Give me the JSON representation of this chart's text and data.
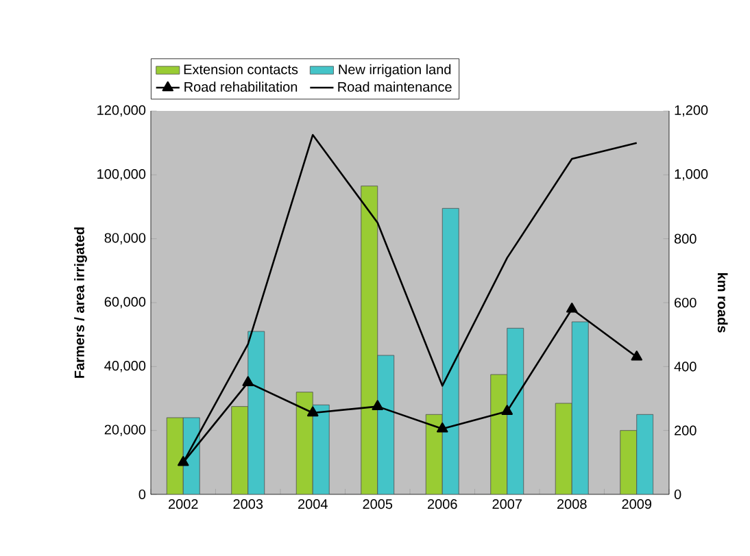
{
  "chart_data": {
    "type": "bar",
    "ylabel": "Farmers / area irrigated",
    "y2label": "km roads",
    "categories": [
      "2002",
      "2003",
      "2004",
      "2005",
      "2006",
      "2007",
      "2008",
      "2009"
    ],
    "series": [
      {
        "name": "Extension contacts",
        "color": "#99cc33",
        "values": [
          24000,
          27500,
          32000,
          96500,
          25000,
          37500,
          28500,
          20000
        ]
      },
      {
        "name": "New irrigation land",
        "color": "#44c4c8",
        "values": [
          24000,
          51000,
          28000,
          43500,
          89500,
          52000,
          54000,
          25000
        ]
      },
      {
        "name": "Road rehabilitation",
        "type": "line",
        "axis": "y2",
        "color": "#000000",
        "marker": "triangle",
        "values": [
          100,
          350,
          255,
          275,
          205,
          260,
          580,
          430
        ]
      },
      {
        "name": "Road maintenance",
        "type": "line",
        "axis": "y2",
        "color": "#000000",
        "marker": "none",
        "values": [
          100,
          470,
          1125,
          850,
          340,
          740,
          1050,
          1100
        ]
      }
    ],
    "ylim": [
      0,
      120000
    ],
    "yticks": [
      0,
      {
        "value": 20000,
        "label": "20,000"
      },
      {
        "value": 40000,
        "label": "40,000"
      },
      {
        "value": 60000,
        "label": "60,000"
      },
      {
        "value": 80000,
        "label": "80,000"
      },
      {
        "value": 100000,
        "label": "100,000"
      },
      {
        "value": 120000,
        "label": "120,000"
      }
    ],
    "y2lim": [
      0,
      1200
    ],
    "y2ticks": [
      0,
      200,
      400,
      600,
      800,
      {
        "value": 1000,
        "label": "1,000"
      },
      {
        "value": 1200,
        "label": "1,200"
      }
    ],
    "grid": false,
    "legend": "top left"
  }
}
